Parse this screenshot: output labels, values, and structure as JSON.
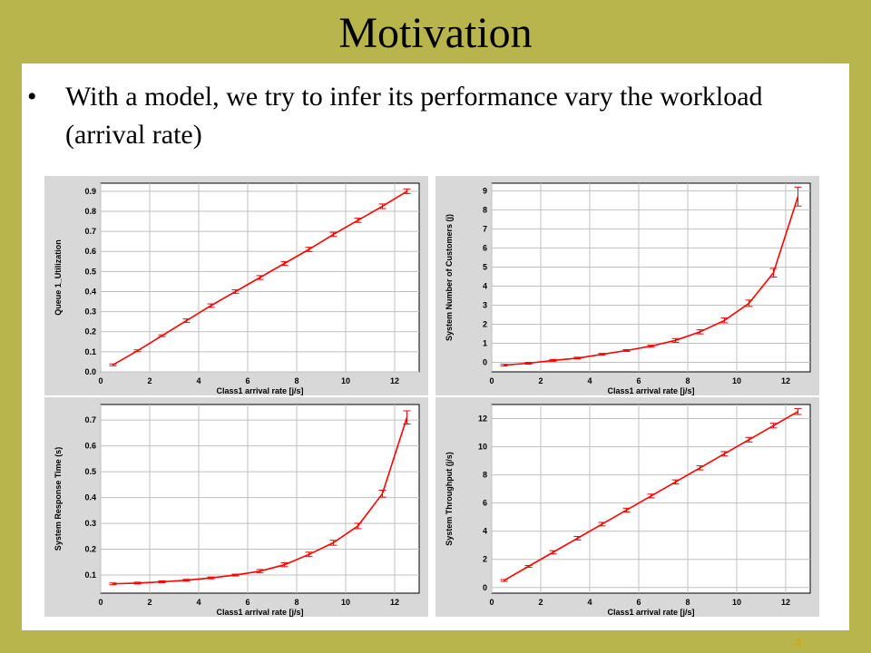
{
  "slide": {
    "title": "Motivation",
    "bullet": "•",
    "bullet_text": "With a model, we try to infer its performance vary the workload (arrival rate)",
    "page_number": "4"
  },
  "colors": {
    "background": "#b8b54c",
    "content": "#ffffff",
    "panel": "#d8d8d8",
    "series": "#ff0000",
    "grid": "#c0c0c0"
  },
  "chart_data": [
    {
      "type": "line",
      "xlabel": "Class1 arrival rate [j/s]",
      "ylabel": "Queue 1_Utilization",
      "xlim": [
        0,
        13
      ],
      "ylim": [
        0,
        0.94
      ],
      "xticks": [
        0,
        2,
        4,
        6,
        8,
        10,
        12
      ],
      "xtick_labels": [
        "0",
        "2",
        "4",
        "6",
        "8",
        "10",
        "12"
      ],
      "yticks": [
        0,
        0.1,
        0.2,
        0.3,
        0.4,
        0.5,
        0.6,
        0.7,
        0.8,
        0.9
      ],
      "ytick_labels": [
        "0.0",
        "0.1",
        "0.2",
        "0.3",
        "0.4",
        "0.5",
        "0.6",
        "0.7",
        "0.8",
        "0.9"
      ],
      "grid": true,
      "series": [
        {
          "x": [
            0.5,
            1.5,
            2.5,
            3.5,
            4.5,
            5.5,
            6.5,
            7.5,
            8.5,
            9.5,
            10.5,
            11.5,
            12.5
          ],
          "y": [
            0.035,
            0.105,
            0.18,
            0.255,
            0.33,
            0.4,
            0.47,
            0.54,
            0.61,
            0.685,
            0.755,
            0.825,
            0.9
          ],
          "err": [
            0,
            0,
            0,
            0.004,
            0.004,
            0.004,
            0.005,
            0.005,
            0.006,
            0.006,
            0.006,
            0.007,
            0.007
          ]
        }
      ]
    },
    {
      "type": "line",
      "xlabel": "Class1 arrival rate [j/s]",
      "ylabel": "System Number of Customers (j)",
      "xlim": [
        0,
        13
      ],
      "ylim": [
        -0.5,
        9.4
      ],
      "xticks": [
        0,
        2,
        4,
        6,
        8,
        10,
        12
      ],
      "xtick_labels": [
        "0",
        "2",
        "4",
        "6",
        "8",
        "10",
        "12"
      ],
      "yticks": [
        0,
        1,
        2,
        3,
        4,
        5,
        6,
        7,
        8,
        9
      ],
      "ytick_labels": [
        "0",
        "1",
        "2",
        "3",
        "4",
        "5",
        "6",
        "7",
        "8",
        "9"
      ],
      "grid": true,
      "series": [
        {
          "x": [
            0.5,
            1.5,
            2.5,
            3.5,
            4.5,
            5.5,
            6.5,
            7.5,
            8.5,
            9.5,
            10.5,
            11.5,
            12.5
          ],
          "y": [
            -0.15,
            -0.05,
            0.1,
            0.22,
            0.42,
            0.62,
            0.85,
            1.15,
            1.6,
            2.2,
            3.1,
            4.7,
            8.7
          ],
          "err": [
            0,
            0,
            0,
            0,
            0,
            0,
            0,
            0.05,
            0.06,
            0.08,
            0.12,
            0.18,
            0.45
          ]
        }
      ]
    },
    {
      "type": "line",
      "xlabel": "Class1 arrival rate [j/s]",
      "ylabel": "System Response Time (s)",
      "xlim": [
        0,
        13
      ],
      "ylim": [
        0.03,
        0.76
      ],
      "xticks": [
        0,
        2,
        4,
        6,
        8,
        10,
        12
      ],
      "xtick_labels": [
        "0",
        "2",
        "4",
        "6",
        "8",
        "10",
        "12"
      ],
      "yticks": [
        0.1,
        0.2,
        0.3,
        0.4,
        0.5,
        0.6,
        0.7
      ],
      "ytick_labels": [
        "0.1",
        "0.2",
        "0.3",
        "0.4",
        "0.5",
        "0.6",
        "0.7"
      ],
      "grid": true,
      "series": [
        {
          "x": [
            0.5,
            1.5,
            2.5,
            3.5,
            4.5,
            5.5,
            6.5,
            7.5,
            8.5,
            9.5,
            10.5,
            11.5,
            12.5
          ],
          "y": [
            0.066,
            0.069,
            0.074,
            0.08,
            0.089,
            0.1,
            0.115,
            0.14,
            0.18,
            0.225,
            0.29,
            0.415,
            0.71
          ],
          "err": [
            0,
            0,
            0,
            0,
            0,
            0,
            0.003,
            0.004,
            0.005,
            0.006,
            0.007,
            0.01,
            0.022
          ]
        }
      ]
    },
    {
      "type": "line",
      "xlabel": "Class1 arrival rate [j/s]",
      "ylabel": "System Throughput (j/s)",
      "xlim": [
        0,
        13
      ],
      "ylim": [
        -0.4,
        13
      ],
      "xticks": [
        0,
        2,
        4,
        6,
        8,
        10,
        12
      ],
      "xtick_labels": [
        "0",
        "2",
        "4",
        "6",
        "8",
        "10",
        "12"
      ],
      "yticks": [
        0,
        2,
        4,
        6,
        8,
        10,
        12
      ],
      "ytick_labels": [
        "0",
        "2",
        "4",
        "6",
        "8",
        "10",
        "12"
      ],
      "grid": true,
      "series": [
        {
          "x": [
            0.5,
            1.5,
            2.5,
            3.5,
            4.5,
            5.5,
            6.5,
            7.5,
            8.5,
            9.5,
            10.5,
            11.5,
            12.5
          ],
          "y": [
            0.5,
            1.5,
            2.5,
            3.5,
            4.5,
            5.5,
            6.5,
            7.5,
            8.5,
            9.5,
            10.5,
            11.5,
            12.5
          ],
          "err": [
            0,
            0,
            0.05,
            0.06,
            0.06,
            0.07,
            0.07,
            0.08,
            0.08,
            0.09,
            0.1,
            0.1,
            0.15
          ]
        }
      ]
    }
  ]
}
